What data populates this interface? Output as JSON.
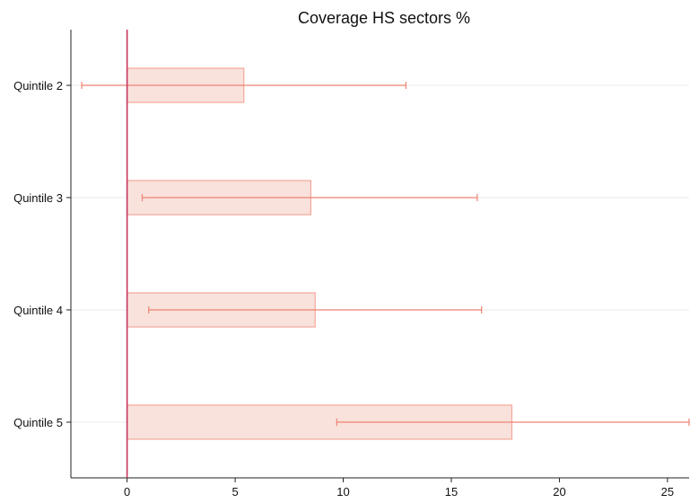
{
  "chart_data": {
    "type": "bar",
    "orientation": "horizontal",
    "title": "Coverage HS sectors %",
    "xlabel": "",
    "ylabel": "",
    "categories": [
      "Quintile 2",
      "Quintile 3",
      "Quintile 4",
      "Quintile 5"
    ],
    "values": [
      5.4,
      8.5,
      8.7,
      17.8
    ],
    "ci_low": [
      -2.1,
      0.7,
      1.0,
      9.7
    ],
    "ci_high": [
      12.9,
      16.2,
      16.4,
      26.0
    ],
    "xlim": [
      -2.6,
      26.0
    ],
    "xticks": [
      0,
      5,
      10,
      15,
      20,
      25
    ],
    "reference_line_x": 0,
    "grid": "horizontal lines at categories",
    "legend": "none",
    "colors": {
      "bar_fill": "#f9e1dc",
      "bar_stroke": "#f4a89a",
      "errorbar": "#ee8272",
      "reference_line": "#c8365e",
      "grid": "#e8e8e8",
      "axis": "#222222"
    }
  }
}
